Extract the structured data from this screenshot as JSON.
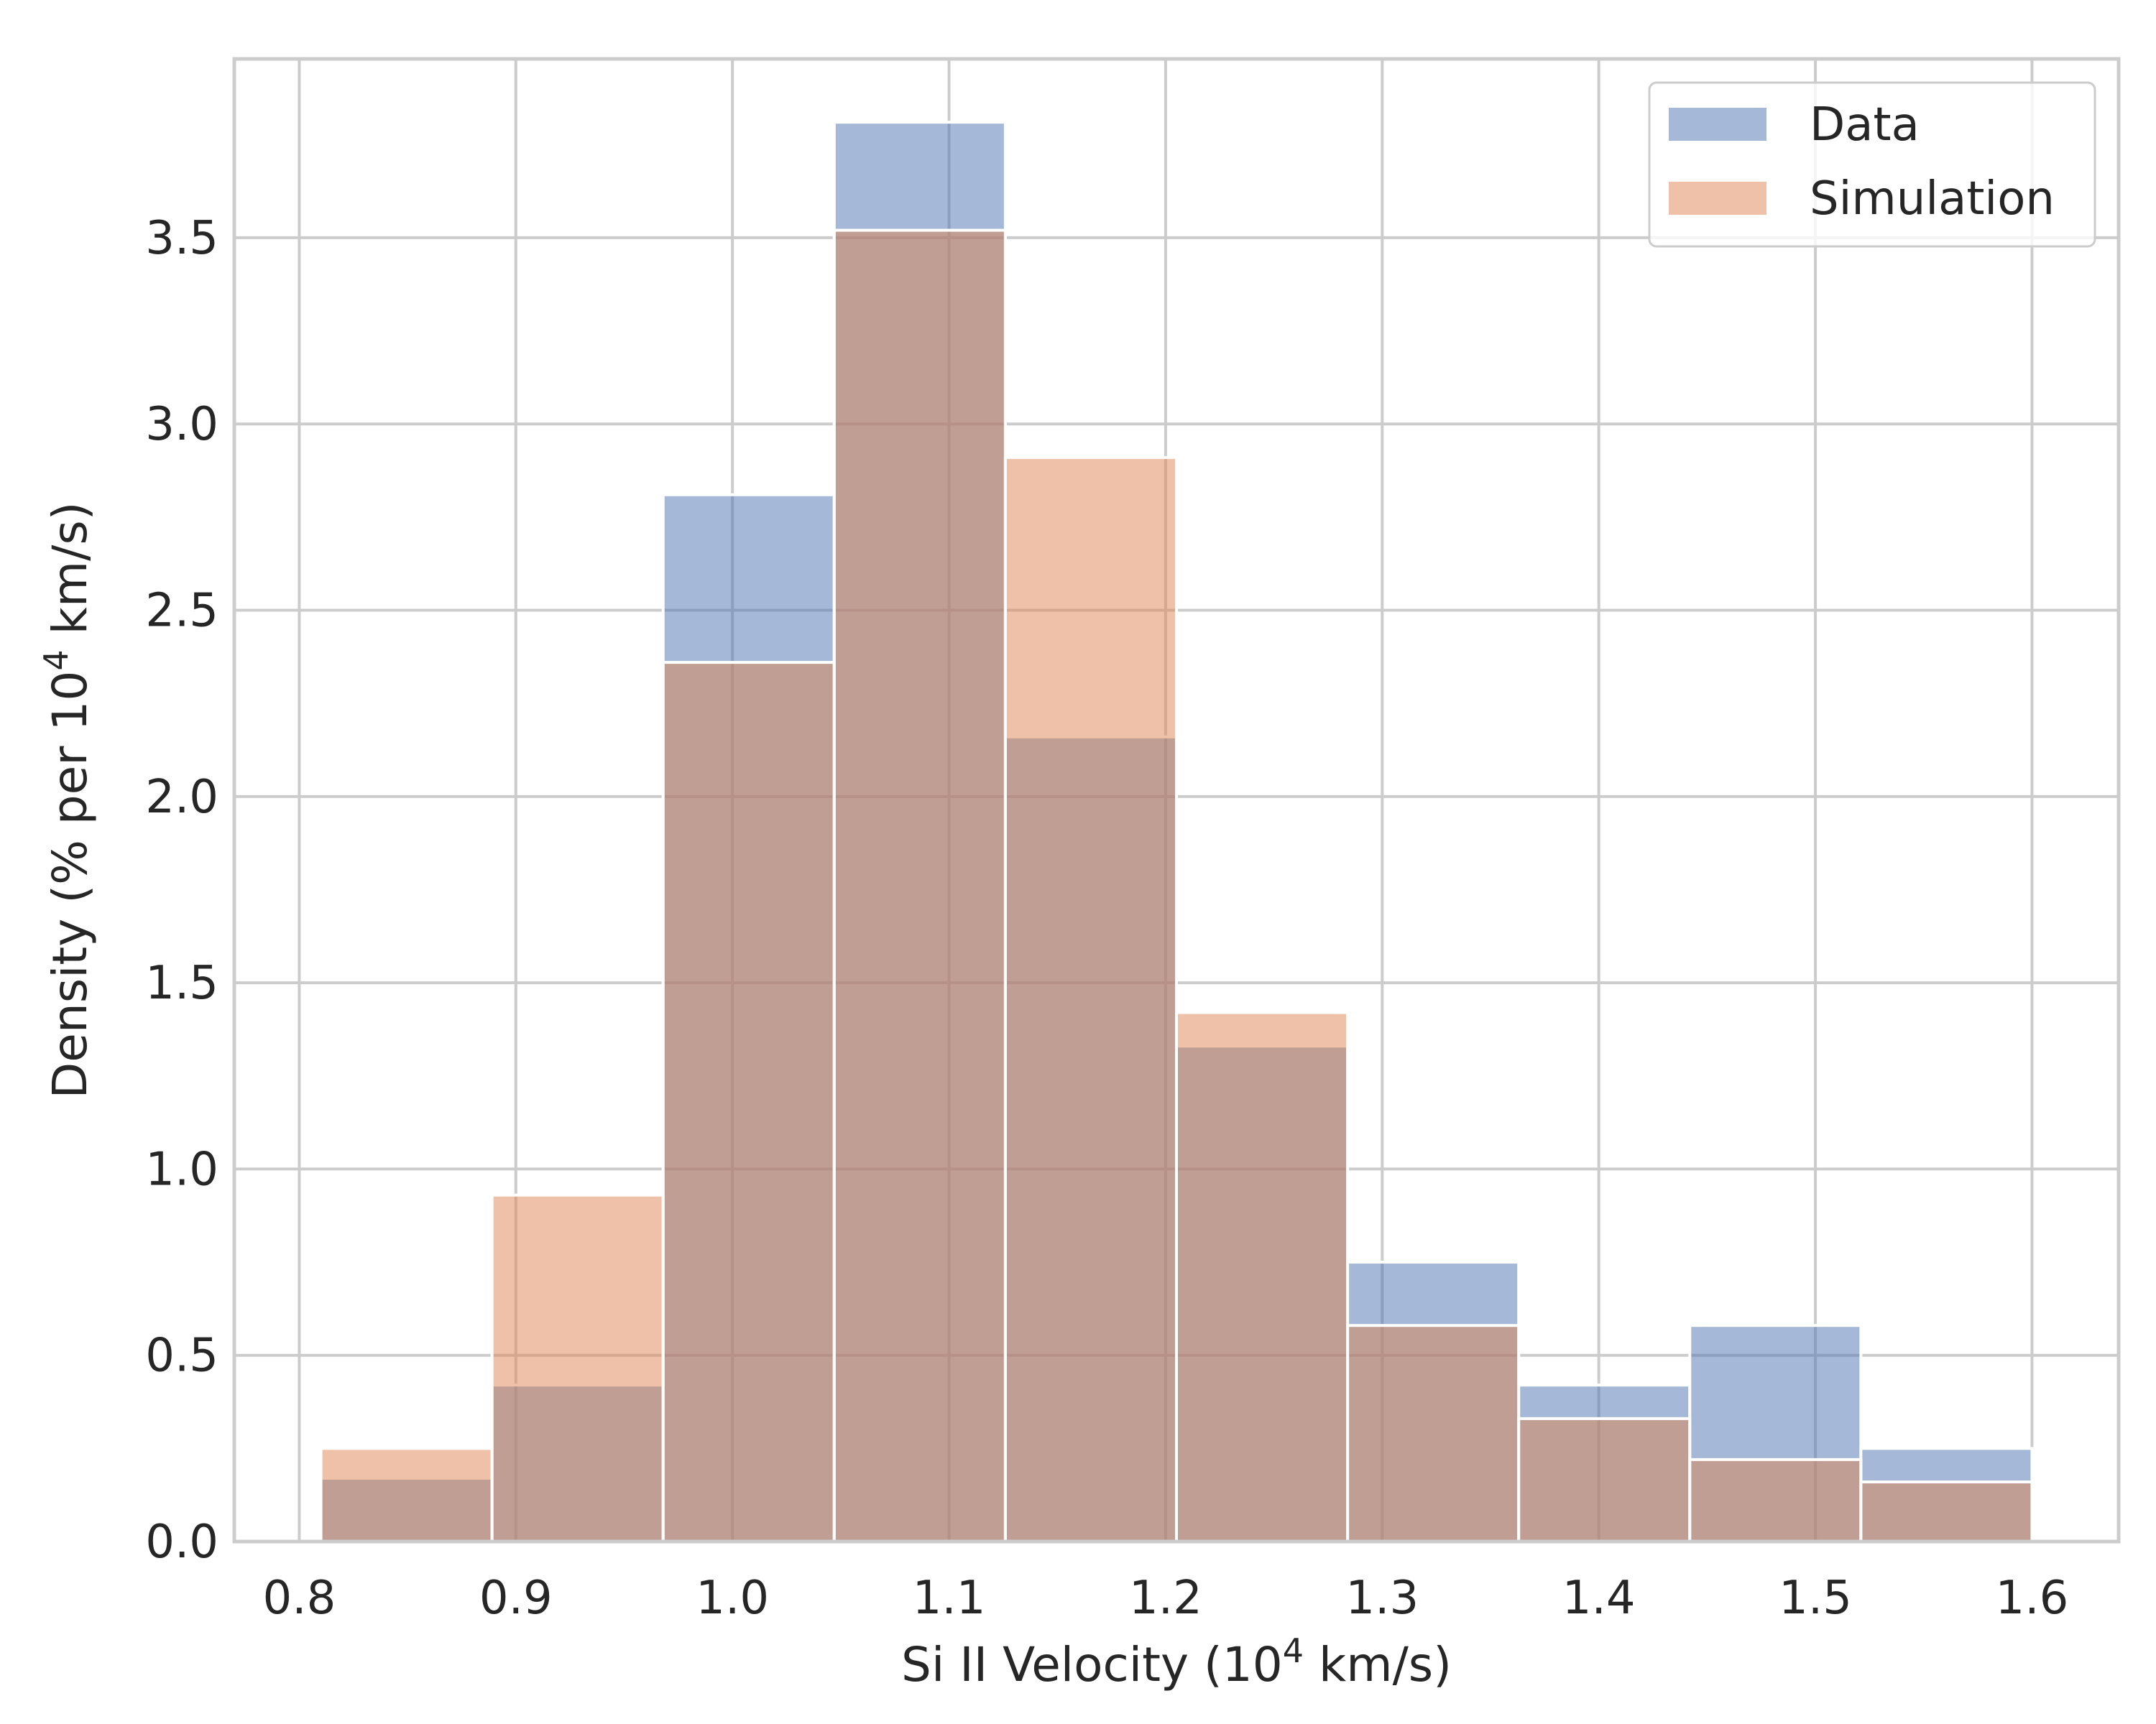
{
  "chart_data": {
    "type": "bar",
    "subtype": "overlaid-histogram",
    "title": "",
    "xlabel_main": "Si II Velocity (10",
    "xlabel_sup": "4",
    "xlabel_tail": " km/s)",
    "ylabel_main": "Density (% per 10",
    "ylabel_sup": "4",
    "ylabel_tail": " km/s)",
    "xlim": [
      0.77,
      1.64
    ],
    "ylim": [
      0,
      3.98
    ],
    "xticks": [
      0.8,
      0.9,
      1.0,
      1.1,
      1.2,
      1.3,
      1.4,
      1.5,
      1.6
    ],
    "xtick_labels": [
      "0.8",
      "0.9",
      "1.0",
      "1.1",
      "1.2",
      "1.3",
      "1.4",
      "1.5",
      "1.6"
    ],
    "yticks": [
      0.0,
      0.5,
      1.0,
      1.5,
      2.0,
      2.5,
      3.0,
      3.5
    ],
    "ytick_labels": [
      "0.0",
      "0.5",
      "1.0",
      "1.5",
      "2.0",
      "2.5",
      "3.0",
      "3.5"
    ],
    "grid": true,
    "legend_position": "top-right",
    "bin_edges": [
      0.81,
      0.889,
      0.968,
      1.047,
      1.126,
      1.205,
      1.284,
      1.363,
      1.442,
      1.521,
      1.6
    ],
    "series": [
      {
        "name": "Data",
        "color": "#4c72b0",
        "values": [
          0.17,
          0.42,
          2.81,
          3.81,
          2.16,
          1.33,
          0.75,
          0.42,
          0.58,
          0.25
        ]
      },
      {
        "name": "Simulation",
        "color": "#dd8452",
        "values": [
          0.25,
          0.93,
          2.36,
          3.52,
          2.91,
          1.42,
          0.58,
          0.33,
          0.22,
          0.16
        ]
      }
    ]
  }
}
